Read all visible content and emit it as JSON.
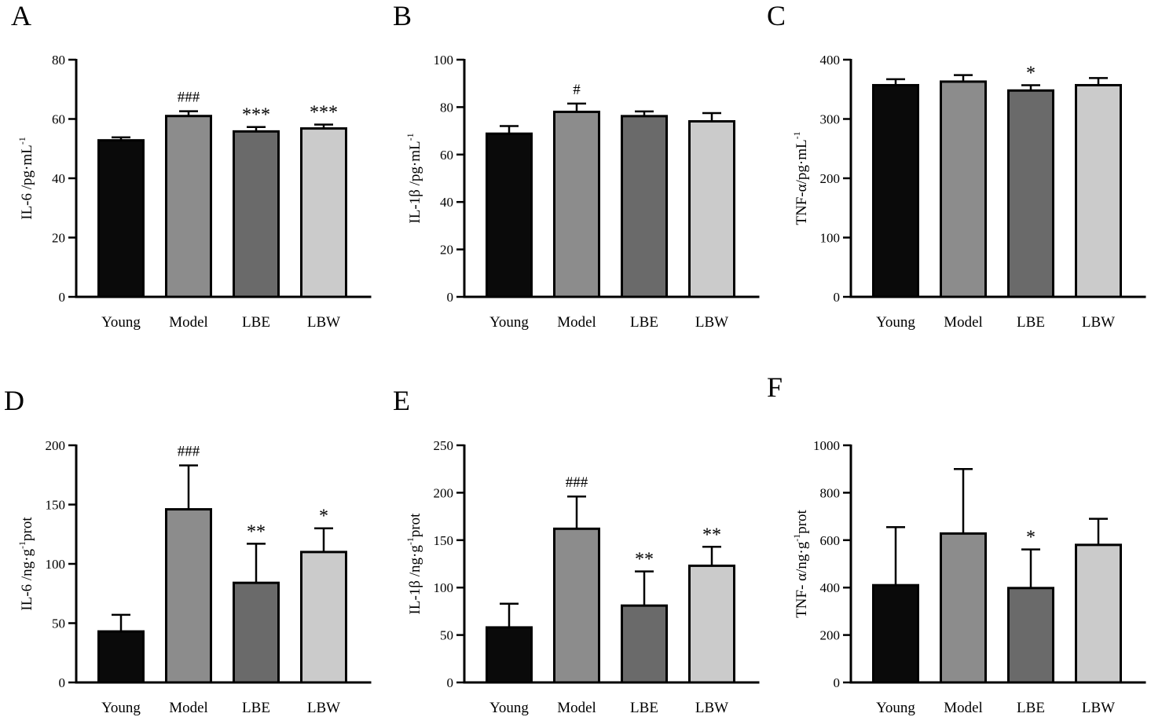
{
  "colors": {
    "Young": "#0a0a0a",
    "Model": "#8c8c8c",
    "LBE": "#6a6a6a",
    "LBW": "#cbcbcb",
    "axis": "#000000"
  },
  "chart_data": [
    {
      "panel": "A",
      "type": "bar",
      "categories": [
        "Young",
        "Model",
        "LBE",
        "LBW"
      ],
      "values": [
        52.8,
        61.0,
        55.8,
        56.8
      ],
      "errors": [
        1.0,
        1.6,
        1.5,
        1.3
      ],
      "annotations": [
        "",
        "###",
        "***",
        "***"
      ],
      "ylabel": "IL-6 /pg·mL",
      "ylabel_sup": "-1",
      "ylabel_tail": "",
      "ylim": [
        0,
        80
      ],
      "yticks": [
        0,
        20,
        40,
        60,
        80
      ],
      "grid": false
    },
    {
      "panel": "B",
      "type": "bar",
      "categories": [
        "Young",
        "Model",
        "LBE",
        "LBW"
      ],
      "values": [
        68.8,
        78.0,
        76.2,
        74.0
      ],
      "errors": [
        3.2,
        3.5,
        2.0,
        3.5
      ],
      "annotations": [
        "",
        "#",
        "",
        ""
      ],
      "ylabel": "IL-1β /pg·mL",
      "ylabel_sup": "-1",
      "ylabel_tail": "",
      "ylim": [
        0,
        100
      ],
      "yticks": [
        0,
        20,
        40,
        60,
        80,
        100
      ],
      "grid": false
    },
    {
      "panel": "C",
      "type": "bar",
      "categories": [
        "Young",
        "Model",
        "LBE",
        "LBW"
      ],
      "values": [
        357,
        363,
        348,
        357
      ],
      "errors": [
        10,
        11,
        9,
        12
      ],
      "annotations": [
        "",
        "",
        "*",
        ""
      ],
      "ylabel": "TNF-α/pg·mL",
      "ylabel_sup": "-1",
      "ylabel_tail": "",
      "ylim": [
        0,
        400
      ],
      "yticks": [
        0,
        100,
        200,
        300,
        400
      ],
      "grid": false
    },
    {
      "panel": "D",
      "type": "bar",
      "categories": [
        "Young",
        "Model",
        "LBE",
        "LBW"
      ],
      "values": [
        43,
        146,
        84,
        110
      ],
      "errors": [
        14,
        37,
        33,
        20
      ],
      "annotations": [
        "",
        "###",
        "**",
        "*"
      ],
      "ylabel": "IL-6 /ng·g",
      "ylabel_sup": "-1",
      "ylabel_tail": "prot",
      "ylim": [
        0,
        200
      ],
      "yticks": [
        0,
        50,
        100,
        150,
        200
      ],
      "grid": false
    },
    {
      "panel": "E",
      "type": "bar",
      "categories": [
        "Young",
        "Model",
        "LBE",
        "LBW"
      ],
      "values": [
        58,
        162,
        81,
        123
      ],
      "errors": [
        25,
        34,
        36,
        20
      ],
      "annotations": [
        "",
        "###",
        "**",
        "**"
      ],
      "ylabel": "IL-1β /ng·g",
      "ylabel_sup": "-1",
      "ylabel_tail": "prot",
      "ylim": [
        0,
        250
      ],
      "yticks": [
        0,
        50,
        100,
        150,
        200,
        250
      ],
      "grid": false
    },
    {
      "panel": "F",
      "type": "bar",
      "categories": [
        "Young",
        "Model",
        "LBE",
        "LBW"
      ],
      "values": [
        410,
        628,
        398,
        580
      ],
      "errors": [
        245,
        272,
        163,
        110
      ],
      "annotations": [
        "",
        "",
        "*",
        ""
      ],
      "ylabel": "TNF- α/ng·g",
      "ylabel_sup": "-1",
      "ylabel_tail": "prot",
      "ylim": [
        0,
        1000
      ],
      "yticks": [
        0,
        200,
        400,
        600,
        800,
        1000
      ],
      "grid": false
    }
  ]
}
